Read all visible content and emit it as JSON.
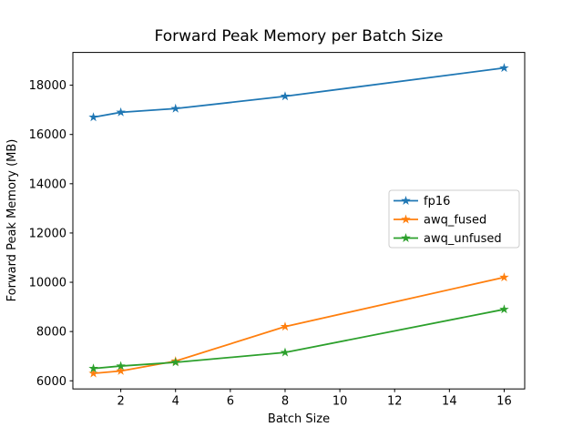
{
  "chart_data": {
    "type": "line",
    "title": "Forward Peak Memory per Batch Size",
    "xlabel": "Batch Size",
    "ylabel": "Forward Peak Memory (MB)",
    "x": [
      1,
      2,
      4,
      8,
      16
    ],
    "series": [
      {
        "name": "fp16",
        "color": "#1f77b4",
        "marker": "star",
        "values": [
          16700,
          16900,
          17050,
          17550,
          18700
        ]
      },
      {
        "name": "awq_fused",
        "color": "#ff7f0e",
        "marker": "star",
        "values": [
          6300,
          6400,
          6800,
          8200,
          10200
        ]
      },
      {
        "name": "awq_unfused",
        "color": "#2ca02c",
        "marker": "star",
        "values": [
          6500,
          6600,
          6750,
          7150,
          8900
        ]
      }
    ],
    "xticks": [
      2,
      4,
      6,
      8,
      10,
      12,
      14,
      16
    ],
    "yticks": [
      6000,
      8000,
      10000,
      12000,
      14000,
      16000,
      18000
    ],
    "xlim": [
      0.25,
      16.75
    ],
    "ylim": [
      5670,
      19330
    ],
    "grid": false,
    "legend_position": "center right",
    "background_color": "#ffffff",
    "spine_color": "#000000",
    "legend_border_color": "#cccccc"
  }
}
